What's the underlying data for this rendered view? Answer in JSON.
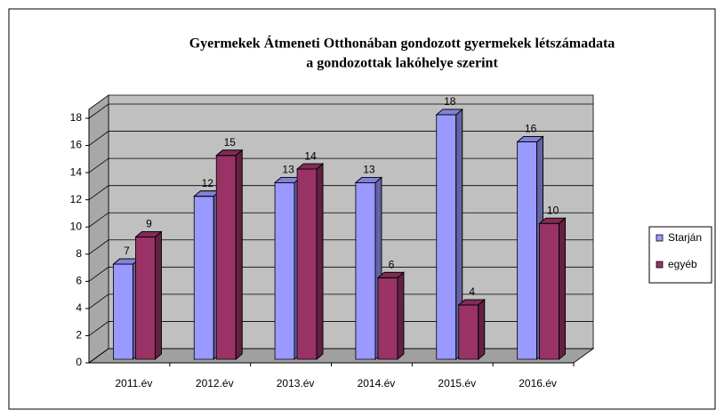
{
  "chart_data": {
    "type": "bar3d",
    "title": [
      "Gyermekek Átmeneti Otthonában gondozott gyermekek létszámadata",
      "a gondozottak lakóhelye szerint"
    ],
    "categories": [
      "2011.év",
      "2012.év",
      "2013.év",
      "2014.év",
      "2015.év",
      "2016.év"
    ],
    "series": [
      {
        "name": "Starján",
        "color": "#9999ff",
        "values": [
          7,
          12,
          13,
          13,
          18,
          16
        ]
      },
      {
        "name": "egyéb",
        "color": "#993366",
        "values": [
          9,
          15,
          14,
          6,
          4,
          10
        ]
      }
    ],
    "ylim": [
      0,
      18
    ],
    "yticks": [
      0,
      2,
      4,
      6,
      8,
      10,
      12,
      14,
      16,
      18
    ],
    "grid": true,
    "legend": "right"
  }
}
